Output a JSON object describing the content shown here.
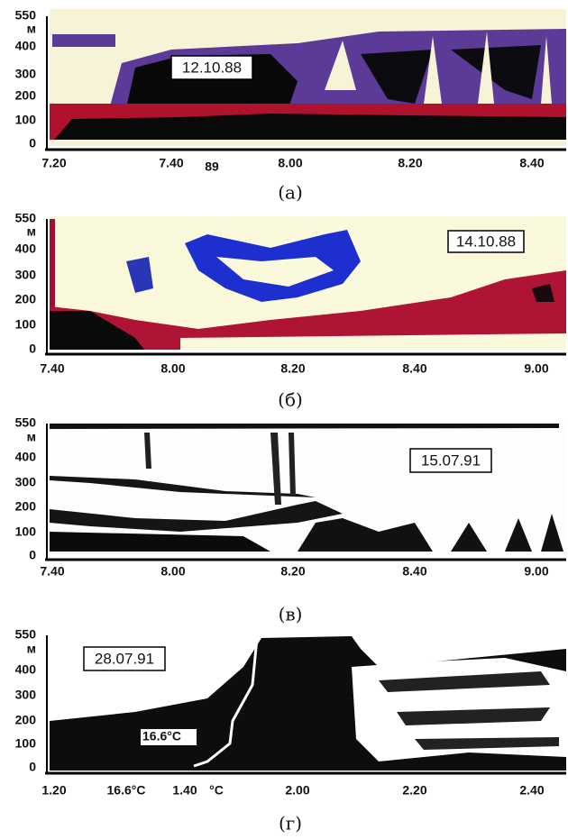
{
  "panels": [
    {
      "y_labels": [
        "550",
        "м",
        "400",
        "300",
        "200",
        "100",
        "0"
      ],
      "x_labels": [
        "7.20",
        "7.40",
        "89",
        "8.00",
        "8.20",
        "8.40"
      ],
      "date": "12.10.88",
      "caption": "(а)"
    },
    {
      "y_labels": [
        "550",
        "м",
        "400",
        "300",
        "200",
        "100",
        "0"
      ],
      "x_labels": [
        "7.40",
        "8.00",
        "8.20",
        "8.40",
        "9.00"
      ],
      "date": "14.10.88",
      "caption": "(б)"
    },
    {
      "y_labels": [
        "550",
        "м",
        "400",
        "300",
        "200",
        "100",
        "0"
      ],
      "x_labels": [
        "7.40",
        "8.00",
        "8.20",
        "8.40",
        "9.00"
      ],
      "date": "15.07.91",
      "caption": "(в)"
    },
    {
      "y_labels": [
        "550",
        "м",
        "400",
        "300",
        "200",
        "100",
        "0"
      ],
      "x_labels": [
        "1.20",
        "16.6°C",
        "1.40",
        "°C",
        "2.00",
        "2.20",
        "2.40"
      ],
      "date": "28.07.91",
      "caption": "(г)",
      "annotation": "16.6°C"
    }
  ]
}
